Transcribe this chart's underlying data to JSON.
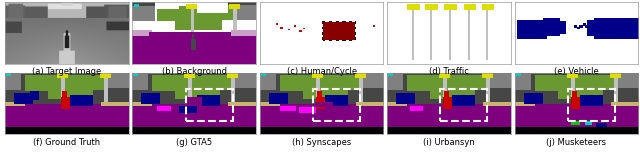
{
  "captions": [
    "(a) Target Image",
    "(b) Background",
    "(c) Human/Cycle",
    "(d) Traffic",
    "(e) Vehicle",
    "(f) Ground Truth",
    "(g) GTA5",
    "(h) Synscapes",
    "(i) Urbansyn",
    "(j) Musketeers"
  ],
  "caption_fontsize": 6.0,
  "fig_width": 6.4,
  "fig_height": 1.61,
  "background_color": "#ffffff",
  "panel_rows": 2,
  "panel_cols": 5,
  "seg_colors": {
    "road": "#7f007f",
    "sidewalk": "#c8a0c8",
    "vegetation": "#6a9932",
    "sky_dark": "#464646",
    "building": "#808080",
    "car": "#00008b",
    "person": "#cc0000",
    "traffic_light": "#dddd00",
    "pole": "#c0c0c0",
    "terrain": "#c8b46e",
    "black": "#000000",
    "magenta": "#ff00ff",
    "green": "#00cc00",
    "cyan": "#00cccc",
    "white": "#ffffff",
    "pink": "#c896c8",
    "dark_gray": "#464646",
    "med_gray": "#787878"
  }
}
